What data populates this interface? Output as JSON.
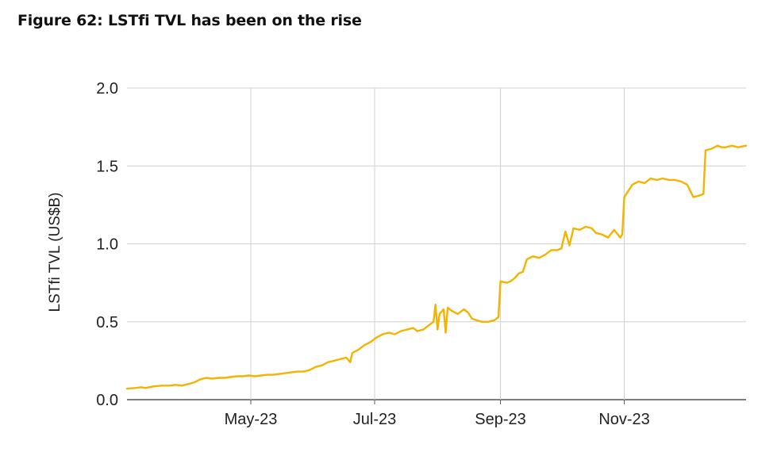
{
  "figure": {
    "title": "Figure 62: LSTfi TVL has been on the rise"
  },
  "chart_data": {
    "type": "line",
    "title": "Figure 62: LSTfi TVL has been on the rise",
    "xlabel": "",
    "ylabel": "LSTfi TVL (US$B)",
    "ylim": [
      0,
      2.0
    ],
    "xlim": [
      "2023-03-01",
      "2023-12-31"
    ],
    "yticks": [
      "0.0",
      "0.5",
      "1.0",
      "1.5",
      "2.0"
    ],
    "ytick_values": [
      0,
      0.5,
      1.0,
      1.5,
      2.0
    ],
    "xticks": [
      {
        "label": "May-23",
        "date": "2023-05-01"
      },
      {
        "label": "Jul-23",
        "date": "2023-07-01"
      },
      {
        "label": "Sep-23",
        "date": "2023-09-01"
      },
      {
        "label": "Nov-23",
        "date": "2023-11-01"
      }
    ],
    "grid": true,
    "legend": "none",
    "series_color": "#f2b400",
    "series": [
      {
        "name": "",
        "points": [
          [
            "2023-03-01",
            0.07
          ],
          [
            "2023-03-05",
            0.075
          ],
          [
            "2023-03-08",
            0.08
          ],
          [
            "2023-03-10",
            0.075
          ],
          [
            "2023-03-14",
            0.085
          ],
          [
            "2023-03-18",
            0.09
          ],
          [
            "2023-03-22",
            0.09
          ],
          [
            "2023-03-25",
            0.095
          ],
          [
            "2023-03-28",
            0.09
          ],
          [
            "2023-03-31",
            0.1
          ],
          [
            "2023-04-03",
            0.11
          ],
          [
            "2023-04-06",
            0.13
          ],
          [
            "2023-04-09",
            0.14
          ],
          [
            "2023-04-12",
            0.135
          ],
          [
            "2023-04-15",
            0.14
          ],
          [
            "2023-04-18",
            0.14
          ],
          [
            "2023-04-21",
            0.145
          ],
          [
            "2023-04-24",
            0.15
          ],
          [
            "2023-04-27",
            0.15
          ],
          [
            "2023-04-30",
            0.155
          ],
          [
            "2023-05-03",
            0.15
          ],
          [
            "2023-05-06",
            0.155
          ],
          [
            "2023-05-09",
            0.16
          ],
          [
            "2023-05-12",
            0.16
          ],
          [
            "2023-05-15",
            0.165
          ],
          [
            "2023-05-18",
            0.17
          ],
          [
            "2023-05-21",
            0.175
          ],
          [
            "2023-05-24",
            0.18
          ],
          [
            "2023-05-27",
            0.18
          ],
          [
            "2023-05-30",
            0.19
          ],
          [
            "2023-06-02",
            0.21
          ],
          [
            "2023-06-05",
            0.22
          ],
          [
            "2023-06-08",
            0.24
          ],
          [
            "2023-06-11",
            0.25
          ],
          [
            "2023-06-14",
            0.26
          ],
          [
            "2023-06-17",
            0.27
          ],
          [
            "2023-06-19",
            0.24
          ],
          [
            "2023-06-20",
            0.3
          ],
          [
            "2023-06-23",
            0.32
          ],
          [
            "2023-06-26",
            0.35
          ],
          [
            "2023-06-29",
            0.37
          ],
          [
            "2023-07-02",
            0.4
          ],
          [
            "2023-07-05",
            0.42
          ],
          [
            "2023-07-08",
            0.43
          ],
          [
            "2023-07-11",
            0.42
          ],
          [
            "2023-07-14",
            0.44
          ],
          [
            "2023-07-17",
            0.45
          ],
          [
            "2023-07-20",
            0.46
          ],
          [
            "2023-07-22",
            0.44
          ],
          [
            "2023-07-25",
            0.45
          ],
          [
            "2023-07-28",
            0.48
          ],
          [
            "2023-07-30",
            0.5
          ],
          [
            "2023-07-31",
            0.61
          ],
          [
            "2023-08-01",
            0.45
          ],
          [
            "2023-08-02",
            0.55
          ],
          [
            "2023-08-04",
            0.58
          ],
          [
            "2023-08-05",
            0.43
          ],
          [
            "2023-08-06",
            0.59
          ],
          [
            "2023-08-08",
            0.57
          ],
          [
            "2023-08-11",
            0.55
          ],
          [
            "2023-08-14",
            0.58
          ],
          [
            "2023-08-16",
            0.56
          ],
          [
            "2023-08-18",
            0.52
          ],
          [
            "2023-08-20",
            0.51
          ],
          [
            "2023-08-23",
            0.5
          ],
          [
            "2023-08-26",
            0.5
          ],
          [
            "2023-08-29",
            0.51
          ],
          [
            "2023-08-31",
            0.53
          ],
          [
            "2023-09-01",
            0.76
          ],
          [
            "2023-09-04",
            0.75
          ],
          [
            "2023-09-06",
            0.76
          ],
          [
            "2023-09-08",
            0.78
          ],
          [
            "2023-09-10",
            0.81
          ],
          [
            "2023-09-12",
            0.82
          ],
          [
            "2023-09-14",
            0.9
          ],
          [
            "2023-09-17",
            0.92
          ],
          [
            "2023-09-20",
            0.91
          ],
          [
            "2023-09-23",
            0.93
          ],
          [
            "2023-09-26",
            0.96
          ],
          [
            "2023-09-29",
            0.96
          ],
          [
            "2023-10-01",
            0.97
          ],
          [
            "2023-10-03",
            1.08
          ],
          [
            "2023-10-05",
            0.99
          ],
          [
            "2023-10-07",
            1.1
          ],
          [
            "2023-10-10",
            1.09
          ],
          [
            "2023-10-13",
            1.11
          ],
          [
            "2023-10-16",
            1.1
          ],
          [
            "2023-10-18",
            1.07
          ],
          [
            "2023-10-21",
            1.06
          ],
          [
            "2023-10-24",
            1.04
          ],
          [
            "2023-10-27",
            1.09
          ],
          [
            "2023-10-30",
            1.04
          ],
          [
            "2023-10-31",
            1.06
          ],
          [
            "2023-11-01",
            1.3
          ],
          [
            "2023-11-03",
            1.34
          ],
          [
            "2023-11-05",
            1.38
          ],
          [
            "2023-11-08",
            1.4
          ],
          [
            "2023-11-11",
            1.39
          ],
          [
            "2023-11-14",
            1.42
          ],
          [
            "2023-11-17",
            1.41
          ],
          [
            "2023-11-20",
            1.42
          ],
          [
            "2023-11-23",
            1.41
          ],
          [
            "2023-11-26",
            1.41
          ],
          [
            "2023-11-29",
            1.4
          ],
          [
            "2023-12-02",
            1.38
          ],
          [
            "2023-12-05",
            1.3
          ],
          [
            "2023-12-08",
            1.31
          ],
          [
            "2023-12-10",
            1.32
          ],
          [
            "2023-12-11",
            1.6
          ],
          [
            "2023-12-14",
            1.61
          ],
          [
            "2023-12-17",
            1.63
          ],
          [
            "2023-12-19",
            1.62
          ],
          [
            "2023-12-21",
            1.62
          ],
          [
            "2023-12-24",
            1.63
          ],
          [
            "2023-12-27",
            1.62
          ],
          [
            "2023-12-31",
            1.63
          ]
        ]
      }
    ]
  }
}
